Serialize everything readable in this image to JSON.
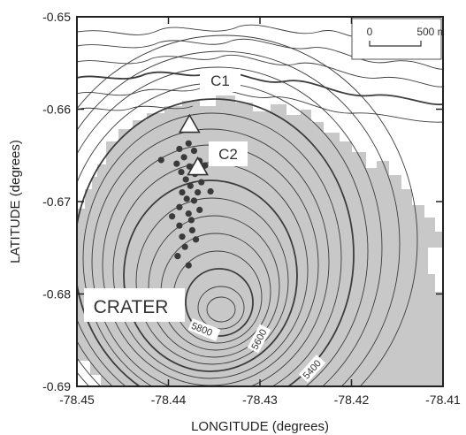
{
  "map": {
    "xlabel": "LONGITUDE (degrees)",
    "ylabel": "LATITUDE (degrees)",
    "xlim": [
      -78.45,
      -78.41
    ],
    "ylim": [
      -0.69,
      -0.65
    ],
    "x_ticks": [
      "-78.45",
      "-78.44",
      "-78.43",
      "-78.42",
      "-78.41"
    ],
    "y_ticks": [
      "-0.65",
      "-0.66",
      "-0.67",
      "-0.68",
      "-0.69"
    ],
    "scale_bar": {
      "start_label": "0",
      "end_label": "500 m"
    },
    "labels": {
      "c1": "C1",
      "c2": "C2",
      "crater": "CRATER"
    },
    "contour_labels": [
      "5800",
      "5600",
      "5400"
    ],
    "summit_triangles": [
      {
        "name": "C1",
        "lon": -78.4377,
        "lat": -0.6617
      },
      {
        "name": "C2",
        "lon": -78.4368,
        "lat": -0.6663
      }
    ],
    "points": [
      [
        -78.4378,
        -0.6637
      ],
      [
        -78.4388,
        -0.6643
      ],
      [
        -78.4372,
        -0.6645
      ],
      [
        -78.4383,
        -0.6652
      ],
      [
        -78.4366,
        -0.6656
      ],
      [
        -78.4408,
        -0.6655
      ],
      [
        -78.4391,
        -0.6659
      ],
      [
        -78.4377,
        -0.6662
      ],
      [
        -78.436,
        -0.6661
      ],
      [
        -78.4386,
        -0.6668
      ],
      [
        -78.4371,
        -0.667
      ],
      [
        -78.4381,
        -0.6676
      ],
      [
        -78.4364,
        -0.6679
      ],
      [
        -78.4376,
        -0.6683
      ],
      [
        -78.4385,
        -0.669
      ],
      [
        -78.4368,
        -0.669
      ],
      [
        -78.4354,
        -0.6689
      ],
      [
        -78.438,
        -0.6697
      ],
      [
        -78.4372,
        -0.6699
      ],
      [
        -78.4388,
        -0.6706
      ],
      [
        -78.4366,
        -0.6709
      ],
      [
        -78.4378,
        -0.6713
      ],
      [
        -78.4396,
        -0.6716
      ],
      [
        -78.4375,
        -0.672
      ],
      [
        -78.4388,
        -0.6726
      ],
      [
        -78.4374,
        -0.6731
      ],
      [
        -78.4385,
        -0.6738
      ],
      [
        -78.437,
        -0.6741
      ],
      [
        -78.4382,
        -0.6749
      ],
      [
        -78.439,
        -0.6759
      ],
      [
        -78.4378,
        -0.6769
      ]
    ],
    "colors": {
      "shaded_area": "#c8c8c8",
      "contour": "#3c3c3c",
      "points": "#3a3a3a"
    }
  }
}
